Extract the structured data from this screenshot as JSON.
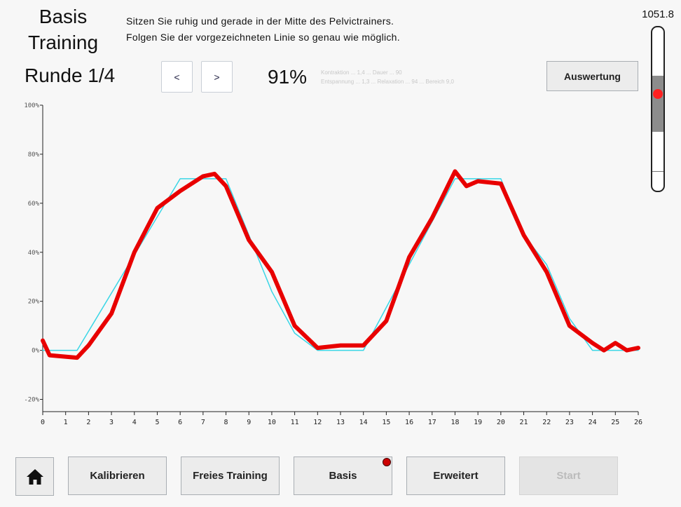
{
  "header": {
    "title_line1": "Basis",
    "title_line2": "Training",
    "instruction_line1": "Sitzen Sie ruhig und gerade in der Mitte des Pelvictrainers.",
    "instruction_line2": "Folgen Sie der vorgezeichneten Linie so genau wie möglich."
  },
  "round_label": "Runde 1/4",
  "nav": {
    "prev": "<",
    "next": ">"
  },
  "score": "91%",
  "stats_faint": {
    "line1": "Kontraktion ... 1,4 ... Dauer ... 90",
    "line2": "Entspannung ... 1,3 ... Relaxation ... 94 ... Bereich 9,0"
  },
  "evaluation_button": "Auswertung",
  "sensor_value": "1051.8",
  "sensor_level": 0.42,
  "colors": {
    "target": "#3ad6e6",
    "actual": "#e80000",
    "axis": "#222222"
  },
  "chart_data": {
    "type": "line",
    "xlim": [
      0,
      26
    ],
    "ylim": [
      -25,
      100
    ],
    "yticks": [
      "100%",
      "80%",
      "60%",
      "40%",
      "20%",
      "0%",
      "-20%"
    ],
    "ytick_values": [
      100,
      80,
      60,
      40,
      20,
      0,
      -20
    ],
    "xticks": [
      "0",
      "1",
      "2",
      "3",
      "4",
      "5",
      "6",
      "7",
      "8",
      "9",
      "10",
      "11",
      "12",
      "13",
      "14",
      "15",
      "16",
      "17",
      "18",
      "19",
      "20",
      "21",
      "22",
      "23",
      "24",
      "25",
      "26"
    ],
    "series": [
      {
        "x": [
          0,
          0.3,
          1.5,
          6,
          7,
          8,
          9,
          10,
          11,
          12,
          14,
          18,
          20,
          21,
          22,
          23,
          24,
          26
        ],
        "y": [
          0,
          0,
          0,
          70,
          70,
          70,
          47,
          24,
          7,
          0,
          0,
          70,
          70,
          47,
          35,
          13,
          0,
          0
        ]
      },
      {
        "x": [
          0,
          0.3,
          1.5,
          2,
          3,
          4,
          5,
          6,
          7,
          7.5,
          8,
          9,
          10,
          11,
          12,
          13,
          14,
          15,
          16,
          17,
          18,
          18.5,
          19,
          20,
          21,
          22,
          23,
          24,
          24.5,
          25,
          25.5,
          26
        ],
        "y": [
          4,
          -2,
          -3,
          2,
          15,
          40,
          58,
          65,
          71,
          72,
          67,
          45,
          32,
          10,
          1,
          2,
          2,
          12,
          38,
          54,
          73,
          67,
          69,
          68,
          47,
          32,
          10,
          3,
          0,
          3,
          0,
          1
        ]
      }
    ]
  },
  "footer": {
    "home": "home",
    "buttons": [
      {
        "label": "Kalibrieren"
      },
      {
        "label": "Freies Training"
      },
      {
        "label": "Basis"
      },
      {
        "label": "Erweitert"
      },
      {
        "label": "Start"
      }
    ]
  }
}
